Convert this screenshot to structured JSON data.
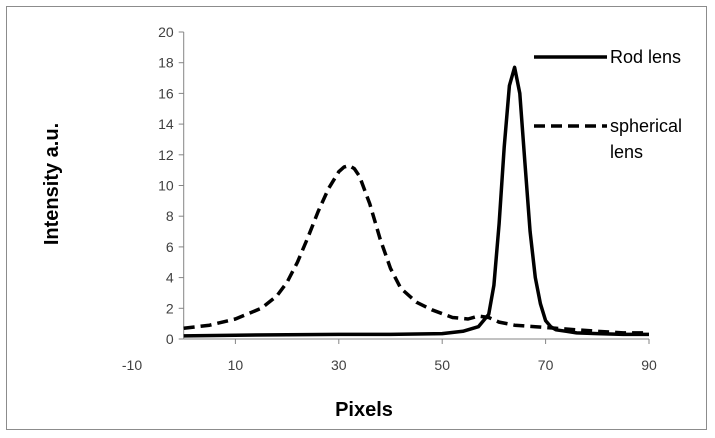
{
  "chart_data": {
    "type": "line",
    "xlabel": "Pixels",
    "ylabel": "Intensity a.u.",
    "xlim": [
      -10,
      90
    ],
    "ylim": [
      0,
      20
    ],
    "x_ticks": [
      "-10",
      "10",
      "30",
      "50",
      "70",
      "90"
    ],
    "y_ticks": [
      "0",
      "2",
      "4",
      "6",
      "8",
      "10",
      "12",
      "14",
      "16",
      "18",
      "20"
    ],
    "grid": false,
    "legend_position": "right",
    "series": [
      {
        "name": "Rod lens",
        "style": "solid",
        "color": "#000000",
        "x": [
          0,
          10,
          20,
          30,
          40,
          50,
          54,
          57,
          59,
          60,
          61,
          62,
          63,
          64,
          65,
          66,
          67,
          68,
          69,
          70,
          71,
          72,
          74,
          76,
          80,
          85,
          90
        ],
        "y": [
          0.2,
          0.25,
          0.28,
          0.3,
          0.3,
          0.35,
          0.5,
          0.8,
          1.6,
          3.5,
          7.5,
          12.5,
          16.5,
          17.7,
          16.0,
          11.5,
          7.0,
          4.0,
          2.3,
          1.2,
          0.8,
          0.6,
          0.5,
          0.4,
          0.35,
          0.3,
          0.3
        ]
      },
      {
        "name": "spherical lens",
        "style": "dashed",
        "color": "#000000",
        "x": [
          0,
          5,
          10,
          15,
          18,
          20,
          22,
          24,
          26,
          28,
          30,
          31,
          32,
          33,
          34,
          36,
          38,
          40,
          42,
          45,
          48,
          52,
          55,
          57,
          59,
          61,
          64,
          68,
          72,
          76,
          80,
          85,
          90
        ],
        "y": [
          0.7,
          0.9,
          1.3,
          2.0,
          2.8,
          3.7,
          5.0,
          6.6,
          8.3,
          9.8,
          10.9,
          11.2,
          11.3,
          11.1,
          10.6,
          8.8,
          6.5,
          4.6,
          3.3,
          2.4,
          1.9,
          1.4,
          1.3,
          1.5,
          1.4,
          1.1,
          0.9,
          0.8,
          0.7,
          0.6,
          0.5,
          0.4,
          0.4
        ]
      }
    ]
  }
}
